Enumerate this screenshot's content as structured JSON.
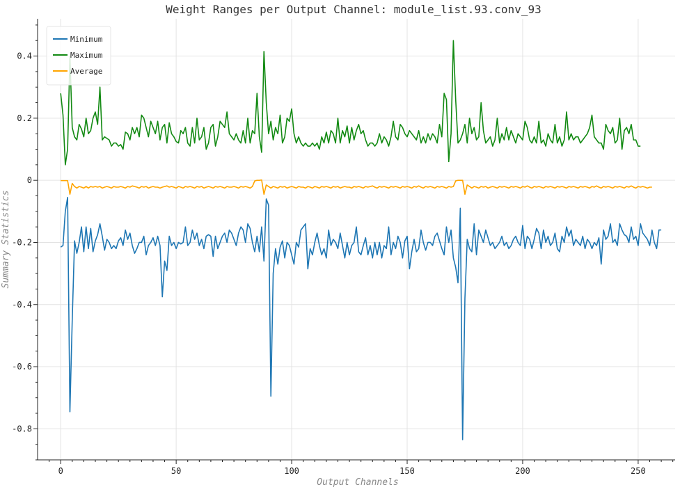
{
  "chart_data": {
    "type": "line",
    "title": "Weight Ranges per Output Channel: module_list.93.conv_93",
    "xlabel": "Output Channels",
    "ylabel": "Summary Statistics",
    "xlim": [
      -10,
      266
    ],
    "ylim": [
      -0.9,
      0.52
    ],
    "grid": true,
    "legend_position": "top-left",
    "x_ticks": [
      0,
      50,
      100,
      150,
      200,
      250
    ],
    "x_tick_labels": [
      "0",
      "50",
      "100",
      "150",
      "200",
      "250"
    ],
    "y_ticks": [
      -0.8,
      -0.6,
      -0.4,
      -0.2,
      0,
      0.2,
      0.4
    ],
    "y_tick_labels": [
      "-0.8",
      "-0.6",
      "-0.4",
      "-0.2",
      "0",
      "0.2",
      "0.4"
    ],
    "x_start": 0,
    "x_step": 1,
    "series": [
      {
        "name": "Minimum",
        "color": "#1f77b4",
        "values": [
          -0.215,
          -0.21,
          -0.1,
          -0.055,
          -0.745,
          -0.45,
          -0.195,
          -0.235,
          -0.2,
          -0.15,
          -0.23,
          -0.15,
          -0.22,
          -0.155,
          -0.23,
          -0.195,
          -0.175,
          -0.14,
          -0.18,
          -0.225,
          -0.19,
          -0.2,
          -0.22,
          -0.21,
          -0.22,
          -0.195,
          -0.185,
          -0.21,
          -0.16,
          -0.19,
          -0.17,
          -0.21,
          -0.235,
          -0.22,
          -0.2,
          -0.2,
          -0.18,
          -0.24,
          -0.21,
          -0.2,
          -0.185,
          -0.21,
          -0.18,
          -0.21,
          -0.375,
          -0.26,
          -0.29,
          -0.18,
          -0.21,
          -0.2,
          -0.22,
          -0.2,
          -0.205,
          -0.2,
          -0.15,
          -0.21,
          -0.2,
          -0.16,
          -0.19,
          -0.17,
          -0.21,
          -0.19,
          -0.22,
          -0.18,
          -0.175,
          -0.18,
          -0.245,
          -0.18,
          -0.22,
          -0.2,
          -0.18,
          -0.17,
          -0.2,
          -0.16,
          -0.17,
          -0.19,
          -0.21,
          -0.17,
          -0.15,
          -0.16,
          -0.2,
          -0.14,
          -0.155,
          -0.2,
          -0.23,
          -0.18,
          -0.23,
          -0.15,
          -0.26,
          -0.06,
          -0.08,
          -0.695,
          -0.3,
          -0.22,
          -0.27,
          -0.215,
          -0.195,
          -0.25,
          -0.2,
          -0.21,
          -0.24,
          -0.27,
          -0.2,
          -0.215,
          -0.16,
          -0.15,
          -0.14,
          -0.285,
          -0.22,
          -0.24,
          -0.2,
          -0.17,
          -0.21,
          -0.24,
          -0.22,
          -0.25,
          -0.16,
          -0.21,
          -0.19,
          -0.2,
          -0.22,
          -0.17,
          -0.21,
          -0.25,
          -0.2,
          -0.24,
          -0.21,
          -0.2,
          -0.15,
          -0.23,
          -0.24,
          -0.21,
          -0.185,
          -0.24,
          -0.21,
          -0.25,
          -0.2,
          -0.24,
          -0.2,
          -0.25,
          -0.21,
          -0.22,
          -0.15,
          -0.24,
          -0.2,
          -0.22,
          -0.18,
          -0.2,
          -0.25,
          -0.195,
          -0.18,
          -0.285,
          -0.23,
          -0.19,
          -0.23,
          -0.22,
          -0.16,
          -0.2,
          -0.225,
          -0.2,
          -0.2,
          -0.21,
          -0.18,
          -0.17,
          -0.195,
          -0.22,
          -0.24,
          -0.15,
          -0.2,
          -0.16,
          -0.25,
          -0.28,
          -0.33,
          -0.09,
          -0.835,
          -0.38,
          -0.19,
          -0.22,
          -0.23,
          -0.14,
          -0.24,
          -0.16,
          -0.18,
          -0.2,
          -0.16,
          -0.185,
          -0.21,
          -0.2,
          -0.22,
          -0.21,
          -0.2,
          -0.18,
          -0.21,
          -0.2,
          -0.22,
          -0.21,
          -0.19,
          -0.18,
          -0.2,
          -0.21,
          -0.145,
          -0.22,
          -0.18,
          -0.19,
          -0.22,
          -0.19,
          -0.155,
          -0.17,
          -0.22,
          -0.16,
          -0.2,
          -0.18,
          -0.21,
          -0.2,
          -0.17,
          -0.22,
          -0.23,
          -0.18,
          -0.2,
          -0.15,
          -0.18,
          -0.16,
          -0.21,
          -0.19,
          -0.2,
          -0.21,
          -0.18,
          -0.22,
          -0.19,
          -0.2,
          -0.22,
          -0.2,
          -0.21,
          -0.185,
          -0.27,
          -0.16,
          -0.19,
          -0.18,
          -0.14,
          -0.2,
          -0.19,
          -0.21,
          -0.14,
          -0.16,
          -0.175,
          -0.18,
          -0.2,
          -0.15,
          -0.19,
          -0.18,
          -0.21,
          -0.14,
          -0.17,
          -0.18,
          -0.19,
          -0.21,
          -0.16,
          -0.2,
          -0.22,
          -0.16,
          -0.16
        ]
      },
      {
        "name": "Maximum",
        "color": "#138a13",
        "values": [
          0.28,
          0.21,
          0.05,
          0.1,
          0.4,
          0.17,
          0.14,
          0.13,
          0.18,
          0.165,
          0.14,
          0.2,
          0.15,
          0.16,
          0.2,
          0.22,
          0.18,
          0.3,
          0.13,
          0.14,
          0.135,
          0.13,
          0.11,
          0.12,
          0.12,
          0.11,
          0.115,
          0.1,
          0.155,
          0.15,
          0.13,
          0.17,
          0.15,
          0.17,
          0.14,
          0.21,
          0.2,
          0.17,
          0.14,
          0.19,
          0.17,
          0.15,
          0.19,
          0.13,
          0.17,
          0.18,
          0.12,
          0.185,
          0.15,
          0.14,
          0.125,
          0.12,
          0.16,
          0.15,
          0.17,
          0.12,
          0.11,
          0.17,
          0.12,
          0.2,
          0.13,
          0.14,
          0.17,
          0.1,
          0.12,
          0.17,
          0.18,
          0.11,
          0.14,
          0.19,
          0.18,
          0.17,
          0.22,
          0.15,
          0.14,
          0.13,
          0.15,
          0.13,
          0.12,
          0.16,
          0.12,
          0.2,
          0.12,
          0.16,
          0.15,
          0.28,
          0.14,
          0.09,
          0.415,
          0.25,
          0.15,
          0.19,
          0.13,
          0.17,
          0.15,
          0.21,
          0.12,
          0.14,
          0.2,
          0.19,
          0.23,
          0.15,
          0.12,
          0.14,
          0.12,
          0.11,
          0.12,
          0.11,
          0.11,
          0.12,
          0.11,
          0.12,
          0.1,
          0.14,
          0.12,
          0.155,
          0.12,
          0.16,
          0.15,
          0.12,
          0.2,
          0.12,
          0.16,
          0.14,
          0.175,
          0.12,
          0.17,
          0.13,
          0.16,
          0.18,
          0.15,
          0.16,
          0.13,
          0.11,
          0.12,
          0.12,
          0.11,
          0.12,
          0.15,
          0.12,
          0.14,
          0.13,
          0.11,
          0.14,
          0.19,
          0.14,
          0.13,
          0.18,
          0.17,
          0.15,
          0.14,
          0.16,
          0.15,
          0.14,
          0.13,
          0.16,
          0.12,
          0.14,
          0.12,
          0.15,
          0.13,
          0.15,
          0.14,
          0.12,
          0.18,
          0.14,
          0.28,
          0.26,
          0.06,
          0.15,
          0.45,
          0.26,
          0.12,
          0.13,
          0.15,
          0.18,
          0.12,
          0.2,
          0.15,
          0.17,
          0.13,
          0.14,
          0.25,
          0.16,
          0.12,
          0.13,
          0.14,
          0.11,
          0.13,
          0.2,
          0.12,
          0.15,
          0.13,
          0.17,
          0.13,
          0.16,
          0.14,
          0.12,
          0.15,
          0.14,
          0.13,
          0.19,
          0.17,
          0.13,
          0.12,
          0.14,
          0.12,
          0.19,
          0.12,
          0.13,
          0.11,
          0.15,
          0.13,
          0.12,
          0.18,
          0.12,
          0.14,
          0.11,
          0.13,
          0.22,
          0.13,
          0.15,
          0.13,
          0.14,
          0.14,
          0.12,
          0.13,
          0.14,
          0.15,
          0.17,
          0.21,
          0.14,
          0.13,
          0.12,
          0.12,
          0.1,
          0.18,
          0.16,
          0.15,
          0.17,
          0.12,
          0.13,
          0.2,
          0.1,
          0.16,
          0.17,
          0.15,
          0.18,
          0.13,
          0.13,
          0.11,
          0.11
        ]
      },
      {
        "name": "Average",
        "color": "#ffa500",
        "values": [
          -0.001,
          -0.001,
          -0.001,
          -0.001,
          -0.045,
          -0.01,
          -0.02,
          -0.025,
          -0.02,
          -0.022,
          -0.025,
          -0.02,
          -0.025,
          -0.02,
          -0.022,
          -0.02,
          -0.022,
          -0.02,
          -0.025,
          -0.022,
          -0.02,
          -0.022,
          -0.025,
          -0.02,
          -0.022,
          -0.022,
          -0.02,
          -0.022,
          -0.025,
          -0.02,
          -0.022,
          -0.018,
          -0.02,
          -0.022,
          -0.025,
          -0.02,
          -0.022,
          -0.02,
          -0.025,
          -0.022,
          -0.02,
          -0.022,
          -0.022,
          -0.025,
          -0.022,
          -0.02,
          -0.018,
          -0.022,
          -0.02,
          -0.022,
          -0.025,
          -0.02,
          -0.022,
          -0.025,
          -0.02,
          -0.022,
          -0.02,
          -0.022,
          -0.025,
          -0.02,
          -0.022,
          -0.02,
          -0.025,
          -0.022,
          -0.02,
          -0.022,
          -0.025,
          -0.02,
          -0.022,
          -0.02,
          -0.022,
          -0.025,
          -0.02,
          -0.022,
          -0.022,
          -0.02,
          -0.022,
          -0.025,
          -0.02,
          -0.022,
          -0.02,
          -0.022,
          -0.025,
          -0.02,
          -0.002,
          0,
          0,
          0.001,
          -0.045,
          -0.015,
          -0.02,
          -0.025,
          -0.02,
          -0.022,
          -0.025,
          -0.02,
          -0.022,
          -0.02,
          -0.025,
          -0.022,
          -0.02,
          -0.022,
          -0.025,
          -0.02,
          -0.022,
          -0.022,
          -0.025,
          -0.02,
          -0.022,
          -0.025,
          -0.02,
          -0.022,
          -0.025,
          -0.02,
          -0.022,
          -0.02,
          -0.022,
          -0.025,
          -0.02,
          -0.022,
          -0.02,
          -0.025,
          -0.022,
          -0.02,
          -0.022,
          -0.022,
          -0.025,
          -0.02,
          -0.022,
          -0.02,
          -0.022,
          -0.025,
          -0.02,
          -0.022,
          -0.02,
          -0.018,
          -0.022,
          -0.025,
          -0.02,
          -0.022,
          -0.02,
          -0.022,
          -0.025,
          -0.02,
          -0.022,
          -0.02,
          -0.022,
          -0.025,
          -0.02,
          -0.022,
          -0.02,
          -0.022,
          -0.025,
          -0.02,
          -0.022,
          -0.018,
          -0.022,
          -0.025,
          -0.02,
          -0.022,
          -0.02,
          -0.022,
          -0.025,
          -0.02,
          -0.022,
          -0.02,
          -0.022,
          -0.025,
          -0.02,
          -0.022,
          -0.02,
          -0.002,
          0,
          0,
          0,
          -0.045,
          -0.015,
          -0.02,
          -0.025,
          -0.02,
          -0.022,
          -0.025,
          -0.02,
          -0.022,
          -0.02,
          -0.025,
          -0.022,
          -0.02,
          -0.022,
          -0.025,
          -0.02,
          -0.022,
          -0.02,
          -0.022,
          -0.025,
          -0.02,
          -0.022,
          -0.02,
          -0.022,
          -0.025,
          -0.02,
          -0.022,
          -0.018,
          -0.022,
          -0.025,
          -0.02,
          -0.022,
          -0.02,
          -0.022,
          -0.025,
          -0.02,
          -0.022,
          -0.02,
          -0.022,
          -0.025,
          -0.02,
          -0.022,
          -0.02,
          -0.022,
          -0.025,
          -0.02,
          -0.022,
          -0.02,
          -0.022,
          -0.025,
          -0.02,
          -0.022,
          -0.02,
          -0.022,
          -0.025,
          -0.02,
          -0.022,
          -0.018,
          -0.022,
          -0.025,
          -0.02,
          -0.022,
          -0.02,
          -0.022,
          -0.025,
          -0.02,
          -0.022,
          -0.02,
          -0.022,
          -0.025,
          -0.02,
          -0.022,
          -0.018,
          -0.022,
          -0.025,
          -0.02,
          -0.022,
          -0.02,
          -0.022,
          -0.025,
          -0.022,
          -0.022
        ]
      }
    ]
  }
}
